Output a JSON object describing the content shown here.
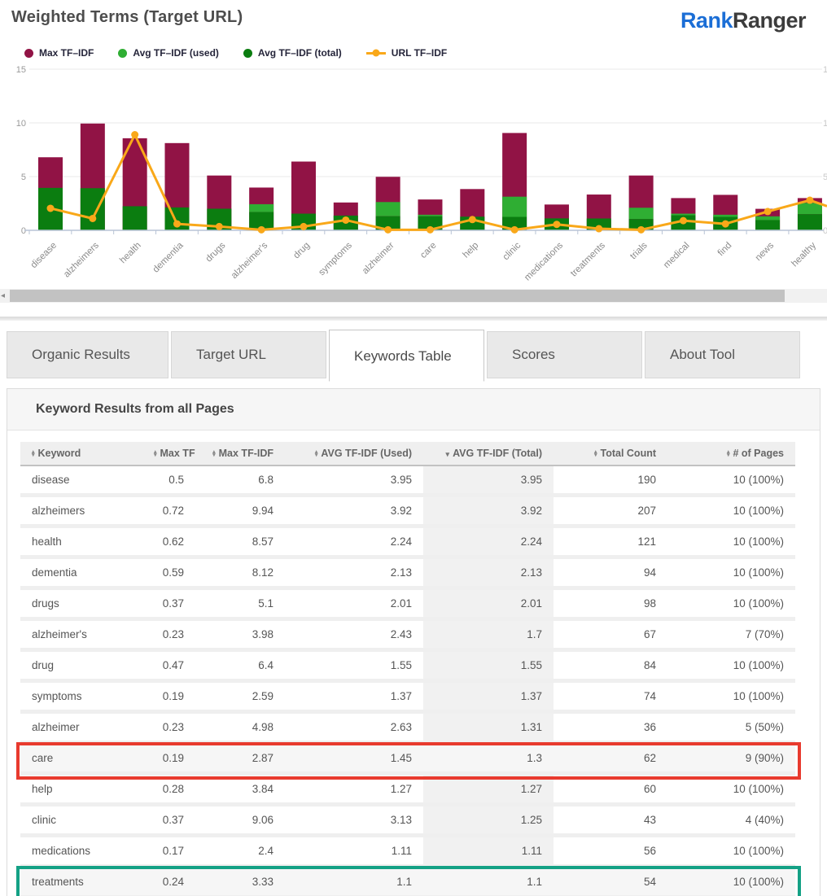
{
  "header": {
    "title": "Weighted Terms (Target URL)",
    "logo": {
      "part1": "Rank",
      "part2": "Ranger",
      "part1_color": "#1b6ed6",
      "part2_color": "#3c3c3c"
    }
  },
  "legend": [
    {
      "label": "Max TF–IDF",
      "color": "#911345",
      "marker": "circle"
    },
    {
      "label": "Avg TF–IDF (used)",
      "color": "#2fae33",
      "marker": "circle"
    },
    {
      "label": "Avg TF–IDF (total)",
      "color": "#0b7d10",
      "marker": "circle"
    },
    {
      "label": "URL TF–IDF",
      "color": "#f9a819",
      "marker": "line-dot"
    }
  ],
  "chart_data": {
    "type": "bar",
    "subtype": "stacked-bars-with-line-overlay",
    "title": "Weighted Terms (Target URL)",
    "xlabel": "",
    "ylabel": "",
    "ylim": [
      0,
      15
    ],
    "yticks": [
      0,
      5,
      10,
      15
    ],
    "grid": true,
    "legend_position": "top-left",
    "scrollable_horizontal": true,
    "categories": [
      "disease",
      "alzheimers",
      "health",
      "dementia",
      "drugs",
      "alzheimer's",
      "drug",
      "symptoms",
      "alzheimer",
      "care",
      "help",
      "clinic",
      "medications",
      "treatments",
      "trials",
      "medical",
      "find",
      "news",
      "healthy"
    ],
    "series": [
      {
        "name": "Max TF-IDF",
        "render": "bar-total-height",
        "color": "#911345",
        "values": [
          6.8,
          9.94,
          8.57,
          8.12,
          5.1,
          3.98,
          6.4,
          2.59,
          4.98,
          2.87,
          3.84,
          9.06,
          2.4,
          3.33,
          5.1,
          3.0,
          3.3,
          2.0,
          3.0
        ]
      },
      {
        "name": "Avg TF-IDF (used)",
        "render": "bar-middle-segment",
        "color": "#2fae33",
        "values": [
          3.95,
          3.92,
          2.24,
          2.13,
          2.01,
          2.43,
          1.55,
          1.37,
          2.63,
          1.45,
          1.27,
          3.13,
          1.11,
          1.1,
          2.1,
          1.55,
          1.45,
          1.3,
          2.55
        ]
      },
      {
        "name": "Avg TF-IDF (total)",
        "render": "bar-bottom-segment",
        "color": "#0b7d10",
        "values": [
          3.95,
          3.92,
          2.24,
          2.13,
          2.01,
          1.7,
          1.55,
          1.37,
          1.31,
          1.3,
          1.27,
          1.25,
          1.11,
          1.1,
          1.05,
          1.4,
          1.25,
          0.95,
          1.5
        ]
      },
      {
        "name": "URL TF-IDF",
        "render": "line",
        "color": "#f9a819",
        "values": [
          2.05,
          1.1,
          8.9,
          0.6,
          0.35,
          0.05,
          0.35,
          0.95,
          0.05,
          0.05,
          1.0,
          0.05,
          0.55,
          0.15,
          0.05,
          0.9,
          0.6,
          1.75,
          2.8
        ]
      }
    ]
  },
  "tabs": [
    {
      "label": "Organic Results",
      "active": false
    },
    {
      "label": "Target URL",
      "active": false
    },
    {
      "label": "Keywords Table",
      "active": true
    },
    {
      "label": "Scores",
      "active": false
    },
    {
      "label": "About Tool",
      "active": false
    }
  ],
  "panel": {
    "title": "Keyword Results from all Pages"
  },
  "table": {
    "columns": [
      {
        "label": "Keyword",
        "sort": "both",
        "align": "left"
      },
      {
        "label": "Max TF",
        "sort": "both",
        "align": "right"
      },
      {
        "label": "Max TF-IDF",
        "sort": "both",
        "align": "right"
      },
      {
        "label": "AVG TF-IDF (Used)",
        "sort": "both",
        "align": "right"
      },
      {
        "label": "AVG TF-IDF (Total)",
        "sort": "desc",
        "align": "right",
        "sorted_column": true
      },
      {
        "label": "Total Count",
        "sort": "both",
        "align": "right"
      },
      {
        "label": "# of Pages",
        "sort": "both",
        "align": "right"
      }
    ],
    "rows": [
      [
        "disease",
        "0.5",
        "6.8",
        "3.95",
        "3.95",
        "190",
        "10 (100%)"
      ],
      [
        "alzheimers",
        "0.72",
        "9.94",
        "3.92",
        "3.92",
        "207",
        "10 (100%)"
      ],
      [
        "health",
        "0.62",
        "8.57",
        "2.24",
        "2.24",
        "121",
        "10 (100%)"
      ],
      [
        "dementia",
        "0.59",
        "8.12",
        "2.13",
        "2.13",
        "94",
        "10 (100%)"
      ],
      [
        "drugs",
        "0.37",
        "5.1",
        "2.01",
        "2.01",
        "98",
        "10 (100%)"
      ],
      [
        "alzheimer's",
        "0.23",
        "3.98",
        "2.43",
        "1.7",
        "67",
        "7 (70%)"
      ],
      [
        "drug",
        "0.47",
        "6.4",
        "1.55",
        "1.55",
        "84",
        "10 (100%)"
      ],
      [
        "symptoms",
        "0.19",
        "2.59",
        "1.37",
        "1.37",
        "74",
        "10 (100%)"
      ],
      [
        "alzheimer",
        "0.23",
        "4.98",
        "2.63",
        "1.31",
        "36",
        "5 (50%)"
      ],
      [
        "care",
        "0.19",
        "2.87",
        "1.45",
        "1.3",
        "62",
        "9 (90%)"
      ],
      [
        "help",
        "0.28",
        "3.84",
        "1.27",
        "1.27",
        "60",
        "10 (100%)"
      ],
      [
        "clinic",
        "0.37",
        "9.06",
        "3.13",
        "1.25",
        "43",
        "4 (40%)"
      ],
      [
        "medications",
        "0.17",
        "2.4",
        "1.11",
        "1.11",
        "56",
        "10 (100%)"
      ],
      [
        "treatments",
        "0.24",
        "3.33",
        "1.1",
        "1.1",
        "54",
        "10 (100%)"
      ]
    ],
    "annotations": [
      {
        "row": "care",
        "box_color": "#e83a2e"
      },
      {
        "row": "treatments",
        "box_color": "#14a185"
      }
    ]
  },
  "scrollbar": {
    "orientation": "horizontal",
    "left_arrow": "◂"
  }
}
